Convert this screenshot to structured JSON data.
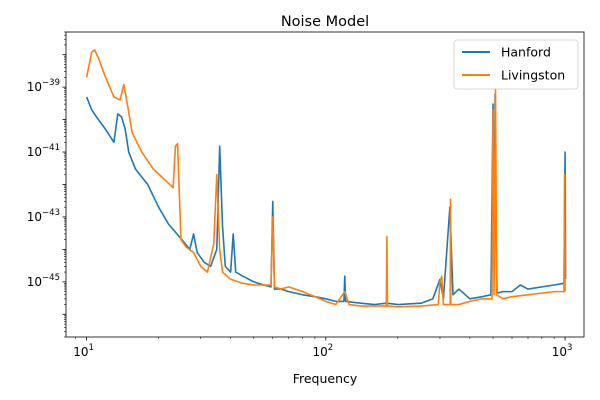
{
  "chart_data": {
    "type": "line",
    "title": "Noise Model",
    "xlabel": "Frequency",
    "ylabel": "",
    "xscale": "log",
    "yscale": "log",
    "xlim": [
      8.2,
      1200
    ],
    "ylim": [
      2e-47,
      5e-38
    ],
    "x_ticks": [
      {
        "value": 10,
        "base": "10",
        "exp": "1"
      },
      {
        "value": 100,
        "base": "10",
        "exp": "2"
      },
      {
        "value": 1000,
        "base": "10",
        "exp": "3"
      }
    ],
    "y_ticks": [
      {
        "value": 1e-45,
        "base": "10",
        "exp": "−45"
      },
      {
        "value": 1e-43,
        "base": "10",
        "exp": "−43"
      },
      {
        "value": 1e-41,
        "base": "10",
        "exp": "−41"
      },
      {
        "value": 1e-39,
        "base": "10",
        "exp": "−39"
      }
    ],
    "legend": "top-right",
    "grid": false,
    "series": [
      {
        "name": "Hanford",
        "color": "#1f77b4",
        "points": [
          [
            10,
            5e-40
          ],
          [
            10.5,
            2e-40
          ],
          [
            11,
            1.2e-40
          ],
          [
            12,
            5e-41
          ],
          [
            13,
            2e-41
          ],
          [
            13.5,
            1.5e-40
          ],
          [
            14,
            1.2e-40
          ],
          [
            14.5,
            5e-41
          ],
          [
            15,
            1e-41
          ],
          [
            16,
            3e-42
          ],
          [
            18,
            1e-42
          ],
          [
            20,
            2e-43
          ],
          [
            22,
            6e-44
          ],
          [
            25,
            2e-44
          ],
          [
            27,
            1e-44
          ],
          [
            28,
            3e-44
          ],
          [
            29,
            8e-45
          ],
          [
            31,
            4e-45
          ],
          [
            33,
            3e-45
          ],
          [
            35,
            1e-44
          ],
          [
            36,
            1.5e-41
          ],
          [
            37,
            5e-44
          ],
          [
            38,
            3e-45
          ],
          [
            40,
            2e-45
          ],
          [
            41,
            3e-44
          ],
          [
            42,
            2e-45
          ],
          [
            45,
            1.5e-45
          ],
          [
            50,
            1e-45
          ],
          [
            55,
            8e-46
          ],
          [
            59,
            7e-46
          ],
          [
            60,
            3e-43
          ],
          [
            61,
            6e-46
          ],
          [
            65,
            6e-46
          ],
          [
            70,
            5e-46
          ],
          [
            80,
            4e-46
          ],
          [
            90,
            3.5e-46
          ],
          [
            100,
            3e-46
          ],
          [
            110,
            2.5e-46
          ],
          [
            119,
            2.5e-46
          ],
          [
            120,
            1.5e-45
          ],
          [
            121,
            2.5e-46
          ],
          [
            140,
            2.2e-46
          ],
          [
            160,
            2e-46
          ],
          [
            180,
            2.2e-46
          ],
          [
            200,
            2e-46
          ],
          [
            250,
            2.2e-46
          ],
          [
            280,
            3e-46
          ],
          [
            300,
            1.2e-45
          ],
          [
            310,
            3e-46
          ],
          [
            330,
            2e-43
          ],
          [
            340,
            4e-46
          ],
          [
            360,
            6e-46
          ],
          [
            400,
            3e-46
          ],
          [
            450,
            3.5e-46
          ],
          [
            490,
            4e-46
          ],
          [
            500,
            3e-40
          ],
          [
            505,
            3e-45
          ],
          [
            510,
            6e-40
          ],
          [
            515,
            1e-44
          ],
          [
            520,
            4.5e-46
          ],
          [
            550,
            5e-46
          ],
          [
            600,
            5e-46
          ],
          [
            650,
            8e-46
          ],
          [
            700,
            6e-46
          ],
          [
            800,
            7e-46
          ],
          [
            900,
            8e-46
          ],
          [
            990,
            9e-46
          ],
          [
            1000,
            1e-41
          ],
          [
            1005,
            1.2e-45
          ]
        ]
      },
      {
        "name": "Livingston",
        "color": "#ff7f0e",
        "points": [
          [
            10,
            2e-39
          ],
          [
            10.5,
            1.2e-38
          ],
          [
            10.8,
            1.4e-38
          ],
          [
            11.2,
            8e-39
          ],
          [
            12,
            2e-39
          ],
          [
            13,
            5e-40
          ],
          [
            13.8,
            4e-40
          ],
          [
            14.3,
            1.2e-39
          ],
          [
            14.8,
            3e-40
          ],
          [
            15.5,
            4e-41
          ],
          [
            17,
            1e-41
          ],
          [
            19,
            3e-42
          ],
          [
            21,
            1.5e-42
          ],
          [
            23,
            8e-43
          ],
          [
            23.5,
            1.5e-41
          ],
          [
            24,
            1.8e-41
          ],
          [
            24.8,
            2e-44
          ],
          [
            26,
            1.2e-44
          ],
          [
            28,
            8e-45
          ],
          [
            30,
            3e-45
          ],
          [
            32,
            2e-45
          ],
          [
            34,
            1.5e-44
          ],
          [
            35,
            2e-42
          ],
          [
            36,
            1e-44
          ],
          [
            37,
            2e-45
          ],
          [
            40,
            1.2e-45
          ],
          [
            45,
            9e-46
          ],
          [
            50,
            8e-46
          ],
          [
            55,
            8e-46
          ],
          [
            59,
            8e-46
          ],
          [
            60,
            1e-43
          ],
          [
            61,
            7e-46
          ],
          [
            65,
            6e-46
          ],
          [
            70,
            7e-46
          ],
          [
            80,
            5e-46
          ],
          [
            90,
            3.5e-46
          ],
          [
            100,
            2.5e-46
          ],
          [
            110,
            2e-46
          ],
          [
            120,
            5e-46
          ],
          [
            125,
            2e-46
          ],
          [
            140,
            1.8e-46
          ],
          [
            160,
            1.8e-46
          ],
          [
            179,
            1.8e-46
          ],
          [
            180,
            2.5e-44
          ],
          [
            181,
            1.8e-46
          ],
          [
            200,
            1.7e-46
          ],
          [
            250,
            1.8e-46
          ],
          [
            295,
            2e-46
          ],
          [
            300,
            1e-45
          ],
          [
            305,
            1.5e-45
          ],
          [
            310,
            2e-46
          ],
          [
            331,
            2e-46
          ],
          [
            332,
            3.5e-43
          ],
          [
            333,
            2e-46
          ],
          [
            360,
            2e-46
          ],
          [
            400,
            2.5e-46
          ],
          [
            450,
            3e-46
          ],
          [
            495,
            3e-46
          ],
          [
            500,
            2e-40
          ],
          [
            505,
            4e-46
          ],
          [
            512,
            9e-40
          ],
          [
            518,
            4e-46
          ],
          [
            550,
            3e-46
          ],
          [
            600,
            3.5e-46
          ],
          [
            700,
            4e-46
          ],
          [
            800,
            4.5e-46
          ],
          [
            900,
            5e-46
          ],
          [
            990,
            5e-46
          ],
          [
            995,
            2e-42
          ],
          [
            1000,
            5e-46
          ]
        ]
      }
    ]
  }
}
